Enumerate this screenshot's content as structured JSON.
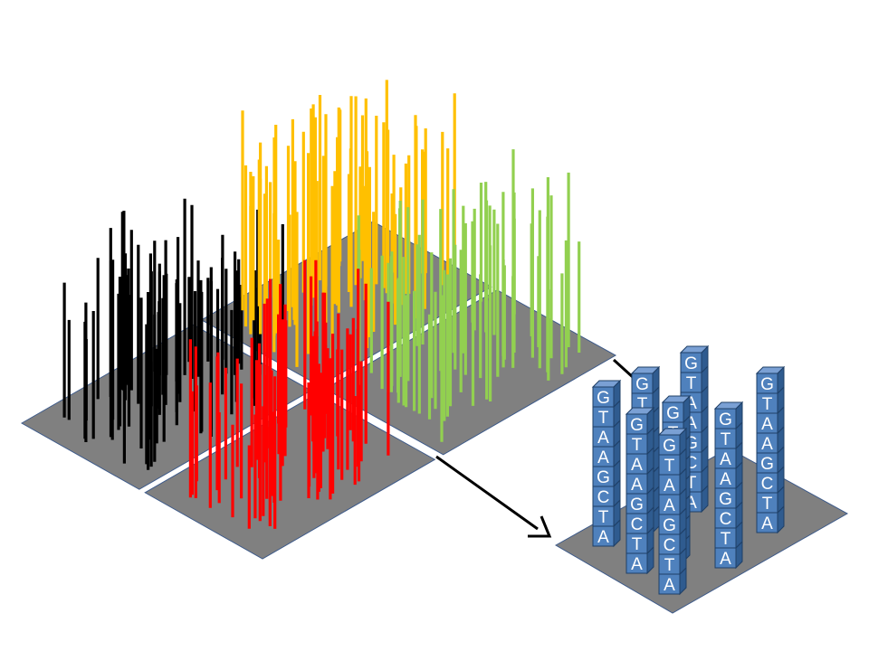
{
  "diagram": {
    "description_colors": {
      "plate": "#808080",
      "plate_stroke": "#3d5a8a",
      "quadrant_black": "#000000",
      "quadrant_yellow": "#ffc000",
      "quadrant_green": "#92d050",
      "quadrant_red": "#ff0000",
      "cube_front": "#4f81bd",
      "cube_top": "#7aa0d4",
      "cube_side": "#2f5b8f",
      "cube_stroke": "#1f3f66",
      "arrow": "#000000"
    },
    "sequence": [
      "G",
      "T",
      "A",
      "A",
      "G",
      "C",
      "T",
      "A"
    ],
    "columns": [
      {
        "letters": [
          "G",
          "T",
          "A",
          "A",
          "G",
          "C",
          "T",
          "A"
        ]
      },
      {
        "letters": [
          "G",
          "T",
          "A",
          "A",
          "G",
          "C",
          "T",
          "A"
        ]
      },
      {
        "letters": [
          "G",
          "T",
          "A",
          "A",
          "G",
          "C",
          "T",
          "A"
        ]
      },
      {
        "letters": [
          "G",
          "T",
          "A",
          "A",
          "G",
          "C",
          "T",
          "A"
        ]
      },
      {
        "letters": [
          "G",
          "T",
          "A",
          "A",
          "G",
          "C",
          "T",
          "A"
        ]
      },
      {
        "letters": [
          "G",
          "T",
          "A",
          "A",
          "G",
          "C",
          "T",
          "A"
        ]
      },
      {
        "letters": [
          "G",
          "T",
          "A",
          "A",
          "G",
          "C",
          "T",
          "A"
        ]
      },
      {
        "letters": [
          "G",
          "T",
          "A",
          "A",
          "G",
          "C",
          "T",
          "A"
        ]
      }
    ]
  }
}
